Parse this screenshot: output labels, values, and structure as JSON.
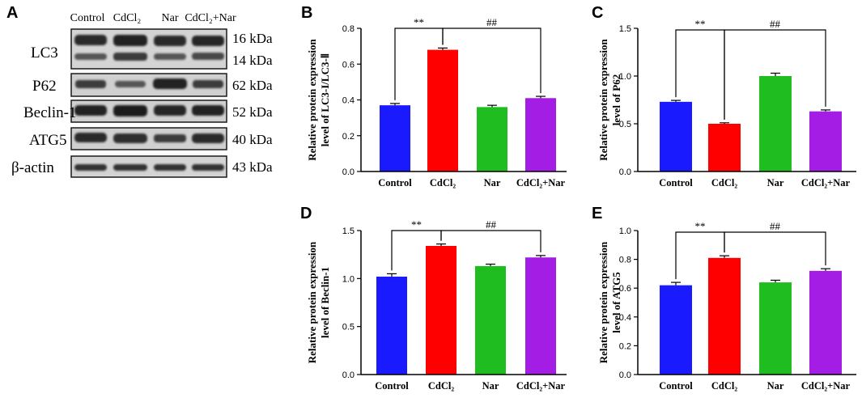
{
  "figure": {
    "panel_labels": [
      "A",
      "B",
      "C",
      "D",
      "E"
    ]
  },
  "blot": {
    "lanes": [
      "Control",
      "CdCl₂",
      "Nar",
      "CdCl₂+Nar"
    ],
    "proteins": [
      {
        "name": "LC3",
        "kda": [
          "16 kDa",
          "14 kDa"
        ]
      },
      {
        "name": "P62",
        "kda": [
          "62 kDa"
        ]
      },
      {
        "name": "Beclin-1",
        "kda": [
          "52 kDa"
        ]
      },
      {
        "name": "ATG5",
        "kda": [
          "40 kDa"
        ]
      },
      {
        "name": "β-actin",
        "kda": [
          "43 kDa"
        ]
      }
    ]
  },
  "colors": {
    "bars": [
      "#1a1aff",
      "#ff0000",
      "#1fbd1f",
      "#a41de4"
    ],
    "axis": "#000000"
  },
  "chart_data": [
    {
      "panel": "B",
      "type": "bar",
      "categories": [
        "Control",
        "CdCl₂",
        "Nar",
        "CdCl₂+Nar"
      ],
      "values": [
        0.37,
        0.68,
        0.36,
        0.41
      ],
      "errors": [
        0.01,
        0.01,
        0.01,
        0.01
      ],
      "ylabel": [
        "Relative protein expression",
        "level of LC3-I/LC3-Ⅱ"
      ],
      "ylim": [
        0,
        0.8
      ],
      "yticks": [
        0.0,
        0.2,
        0.4,
        0.6,
        0.8
      ],
      "ytick_labels": [
        "0.0",
        "0.2",
        "0.4",
        "0.6",
        "0.8"
      ],
      "annotations": [
        {
          "text": "**",
          "from": 0,
          "to": 1
        },
        {
          "text": "##",
          "from": 1,
          "to": 3
        }
      ]
    },
    {
      "panel": "C",
      "type": "bar",
      "categories": [
        "Control",
        "CdCl₂",
        "Nar",
        "CdCl₂+Nar"
      ],
      "values": [
        0.73,
        0.5,
        1.0,
        0.63
      ],
      "errors": [
        0.015,
        0.01,
        0.03,
        0.015
      ],
      "ylabel": [
        "Relative protein expression",
        "level of P62"
      ],
      "ylim": [
        0,
        1.5
      ],
      "yticks": [
        0.0,
        0.5,
        1.0,
        1.5
      ],
      "ytick_labels": [
        "0.0",
        "0.5",
        "1.0",
        "1.5"
      ],
      "annotations": [
        {
          "text": "**",
          "from": 0,
          "to": 1
        },
        {
          "text": "##",
          "from": 1,
          "to": 3
        }
      ]
    },
    {
      "panel": "D",
      "type": "bar",
      "categories": [
        "Control",
        "CdCl₂",
        "Nar",
        "CdCl₂+Nar"
      ],
      "values": [
        1.02,
        1.34,
        1.13,
        1.22
      ],
      "errors": [
        0.03,
        0.02,
        0.02,
        0.02
      ],
      "ylabel": [
        "Relative protein expression",
        "level of Beclin-1"
      ],
      "ylim": [
        0,
        1.5
      ],
      "yticks": [
        0.0,
        0.5,
        1.0,
        1.5
      ],
      "ytick_labels": [
        "0.0",
        "0.5",
        "1.0",
        "1.5"
      ],
      "annotations": [
        {
          "text": "**",
          "from": 0,
          "to": 1
        },
        {
          "text": "##",
          "from": 1,
          "to": 3
        }
      ]
    },
    {
      "panel": "E",
      "type": "bar",
      "categories": [
        "Control",
        "CdCl₂",
        "Nar",
        "CdCl₂+Nar"
      ],
      "values": [
        0.62,
        0.81,
        0.64,
        0.72
      ],
      "errors": [
        0.02,
        0.015,
        0.015,
        0.015
      ],
      "ylabel": [
        "Relative protein expression",
        "level of ATG5"
      ],
      "ylim": [
        0,
        1.0
      ],
      "yticks": [
        0.0,
        0.2,
        0.4,
        0.6,
        0.8,
        1.0
      ],
      "ytick_labels": [
        "0.0",
        "0.2",
        "0.4",
        "0.6",
        "0.8",
        "1.0"
      ],
      "annotations": [
        {
          "text": "**",
          "from": 0,
          "to": 1
        },
        {
          "text": "##",
          "from": 1,
          "to": 3
        }
      ]
    }
  ]
}
